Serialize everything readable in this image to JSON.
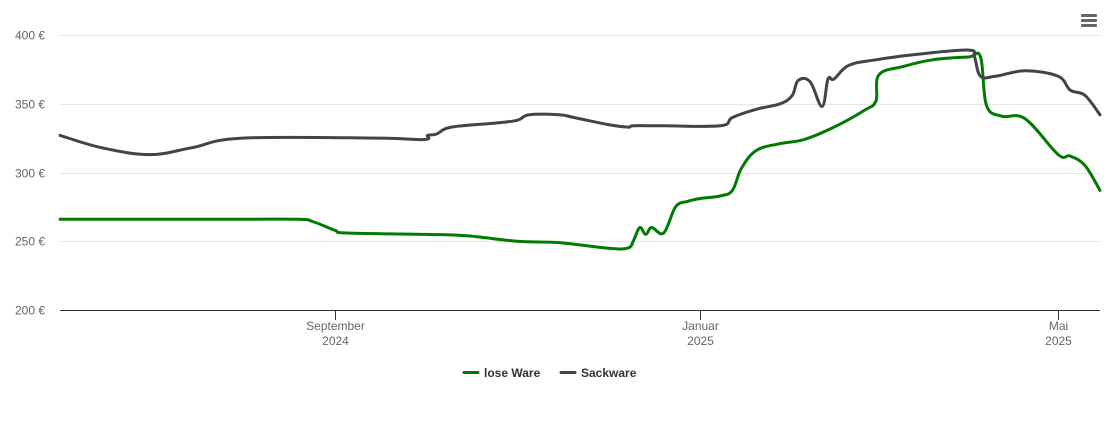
{
  "chart_data": {
    "type": "line",
    "title": "",
    "xlabel": "",
    "ylabel": "",
    "ylim": [
      200,
      400
    ],
    "y_ticks": [
      {
        "value": 200,
        "label": "200 €"
      },
      {
        "value": 250,
        "label": "250 €"
      },
      {
        "value": 300,
        "label": "300 €"
      },
      {
        "value": 350,
        "label": "350 €"
      },
      {
        "value": 400,
        "label": "400 €"
      }
    ],
    "x_range": [
      "2024-06-01",
      "2025-05-15"
    ],
    "x_ticks": [
      {
        "date": "2024-09-01",
        "line1": "September",
        "line2": "2024"
      },
      {
        "date": "2025-01-01",
        "line1": "Januar",
        "line2": "2025"
      },
      {
        "date": "2025-05-01",
        "line1": "Mai",
        "line2": "2025"
      }
    ],
    "grid": true,
    "legend_position": "bottom-center",
    "series": [
      {
        "name": "lose Ware",
        "color": "#007a00",
        "points": [
          [
            "2024-06-01",
            266
          ],
          [
            "2024-07-01",
            266
          ],
          [
            "2024-08-01",
            266
          ],
          [
            "2024-08-20",
            266
          ],
          [
            "2024-08-25",
            264
          ],
          [
            "2024-09-01",
            258
          ],
          [
            "2024-09-05",
            256
          ],
          [
            "2024-10-01",
            255
          ],
          [
            "2024-10-15",
            254
          ],
          [
            "2024-11-01",
            250
          ],
          [
            "2024-11-15",
            249
          ],
          [
            "2024-12-01",
            245
          ],
          [
            "2024-12-08",
            245
          ],
          [
            "2024-12-10",
            251
          ],
          [
            "2024-12-12",
            260
          ],
          [
            "2024-12-14",
            255
          ],
          [
            "2024-12-16",
            260
          ],
          [
            "2024-12-20",
            256
          ],
          [
            "2024-12-24",
            275
          ],
          [
            "2024-12-28",
            279
          ],
          [
            "2025-01-01",
            281
          ],
          [
            "2025-01-08",
            283
          ],
          [
            "2025-01-12",
            287
          ],
          [
            "2025-01-15",
            303
          ],
          [
            "2025-01-20",
            316
          ],
          [
            "2025-01-28",
            321
          ],
          [
            "2025-02-05",
            324
          ],
          [
            "2025-02-15",
            333
          ],
          [
            "2025-02-25",
            345
          ],
          [
            "2025-03-01",
            352
          ],
          [
            "2025-03-02",
            371
          ],
          [
            "2025-03-10",
            377
          ],
          [
            "2025-03-20",
            382
          ],
          [
            "2025-04-01",
            384
          ],
          [
            "2025-04-05",
            384
          ],
          [
            "2025-04-07",
            349
          ],
          [
            "2025-04-12",
            341
          ],
          [
            "2025-04-20",
            339
          ],
          [
            "2025-05-01",
            313
          ],
          [
            "2025-05-05",
            312
          ],
          [
            "2025-05-10",
            305
          ],
          [
            "2025-05-15",
            287
          ]
        ]
      },
      {
        "name": "Sackware",
        "color": "#434348",
        "points": [
          [
            "2024-06-01",
            327
          ],
          [
            "2024-06-15",
            318
          ],
          [
            "2024-07-01",
            313
          ],
          [
            "2024-07-15",
            318
          ],
          [
            "2024-08-01",
            325
          ],
          [
            "2024-09-15",
            325
          ],
          [
            "2024-10-01",
            324
          ],
          [
            "2024-10-02",
            327
          ],
          [
            "2024-10-05",
            328
          ],
          [
            "2024-10-10",
            333
          ],
          [
            "2024-10-25",
            336
          ],
          [
            "2024-11-01",
            338
          ],
          [
            "2024-11-05",
            342
          ],
          [
            "2024-11-15",
            342
          ],
          [
            "2024-11-20",
            340
          ],
          [
            "2024-12-01",
            335
          ],
          [
            "2024-12-08",
            333
          ],
          [
            "2024-12-10",
            334
          ],
          [
            "2024-12-20",
            334
          ],
          [
            "2025-01-08",
            334
          ],
          [
            "2025-01-12",
            340
          ],
          [
            "2025-01-20",
            346
          ],
          [
            "2025-01-28",
            350
          ],
          [
            "2025-02-01",
            356
          ],
          [
            "2025-02-03",
            367
          ],
          [
            "2025-02-07",
            366
          ],
          [
            "2025-02-11",
            348
          ],
          [
            "2025-02-13",
            368
          ],
          [
            "2025-02-15",
            368
          ],
          [
            "2025-02-20",
            378
          ],
          [
            "2025-03-01",
            382
          ],
          [
            "2025-03-15",
            386
          ],
          [
            "2025-04-01",
            389
          ],
          [
            "2025-04-03",
            384
          ],
          [
            "2025-04-05",
            370
          ],
          [
            "2025-04-10",
            370
          ],
          [
            "2025-04-20",
            374
          ],
          [
            "2025-05-01",
            370
          ],
          [
            "2025-05-05",
            360
          ],
          [
            "2025-05-10",
            356
          ],
          [
            "2025-05-15",
            342
          ]
        ]
      }
    ]
  }
}
